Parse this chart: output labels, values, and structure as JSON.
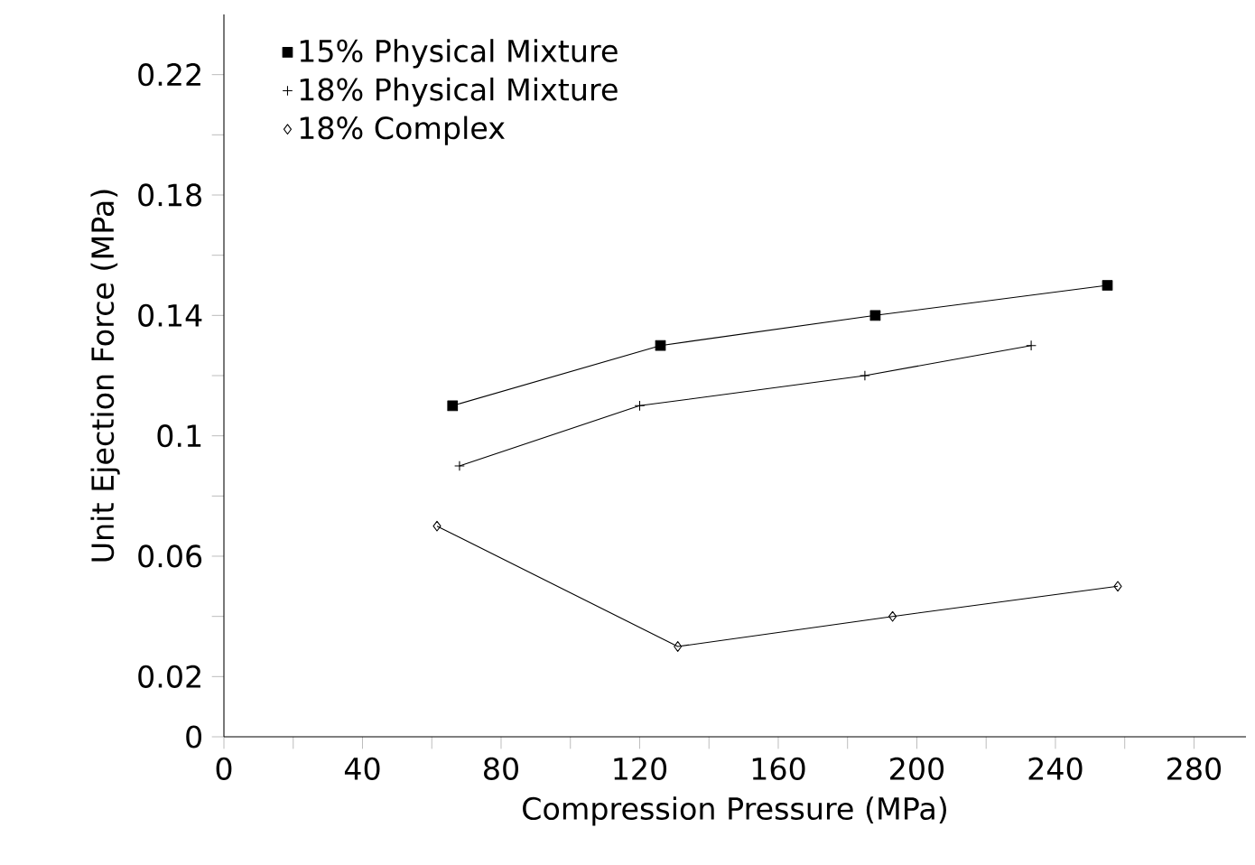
{
  "chart_data": {
    "type": "line",
    "xlabel": "Compression Pressure (MPa)",
    "ylabel": "Unit Ejection Force (MPa)",
    "xlim": [
      0,
      295
    ],
    "ylim": [
      0,
      0.24
    ],
    "xticks": [
      0,
      {
        "value": 20,
        "label": null
      },
      40,
      {
        "value": 60,
        "label": null
      },
      80,
      {
        "value": 100,
        "label": null
      },
      120,
      {
        "value": 140,
        "label": null
      },
      160,
      {
        "value": 180,
        "label": null
      },
      200,
      {
        "value": 220,
        "label": null
      },
      240,
      {
        "value": 260,
        "label": null
      },
      280
    ],
    "yticks": [
      0,
      0.02,
      {
        "value": 0.04,
        "label": null
      },
      0.06,
      {
        "value": 0.08,
        "label": null
      },
      0.1,
      {
        "value": 0.12,
        "label": null
      },
      0.14,
      {
        "value": 0.16,
        "label": null
      },
      0.18,
      {
        "value": 0.2,
        "label": null
      },
      0.22
    ],
    "legend": "top left",
    "line_style": "solid",
    "grid": false,
    "series": [
      {
        "name": "15% Physical Mixture",
        "color": "#000000",
        "marker": "square",
        "x": [
          66,
          126,
          188,
          255
        ],
        "values": [
          0.11,
          0.13,
          0.14,
          0.15
        ]
      },
      {
        "name": "18% Physical Mixture",
        "color": "#000000",
        "marker": "cross",
        "x": [
          68,
          120,
          185,
          233
        ],
        "values": [
          0.09,
          0.11,
          0.12,
          0.13
        ]
      },
      {
        "name": "18% Complex",
        "color": "#000000",
        "marker": "diamond",
        "x": [
          61.5,
          131,
          193,
          258
        ],
        "values": [
          0.07,
          0.03,
          0.04,
          0.05
        ]
      }
    ]
  }
}
